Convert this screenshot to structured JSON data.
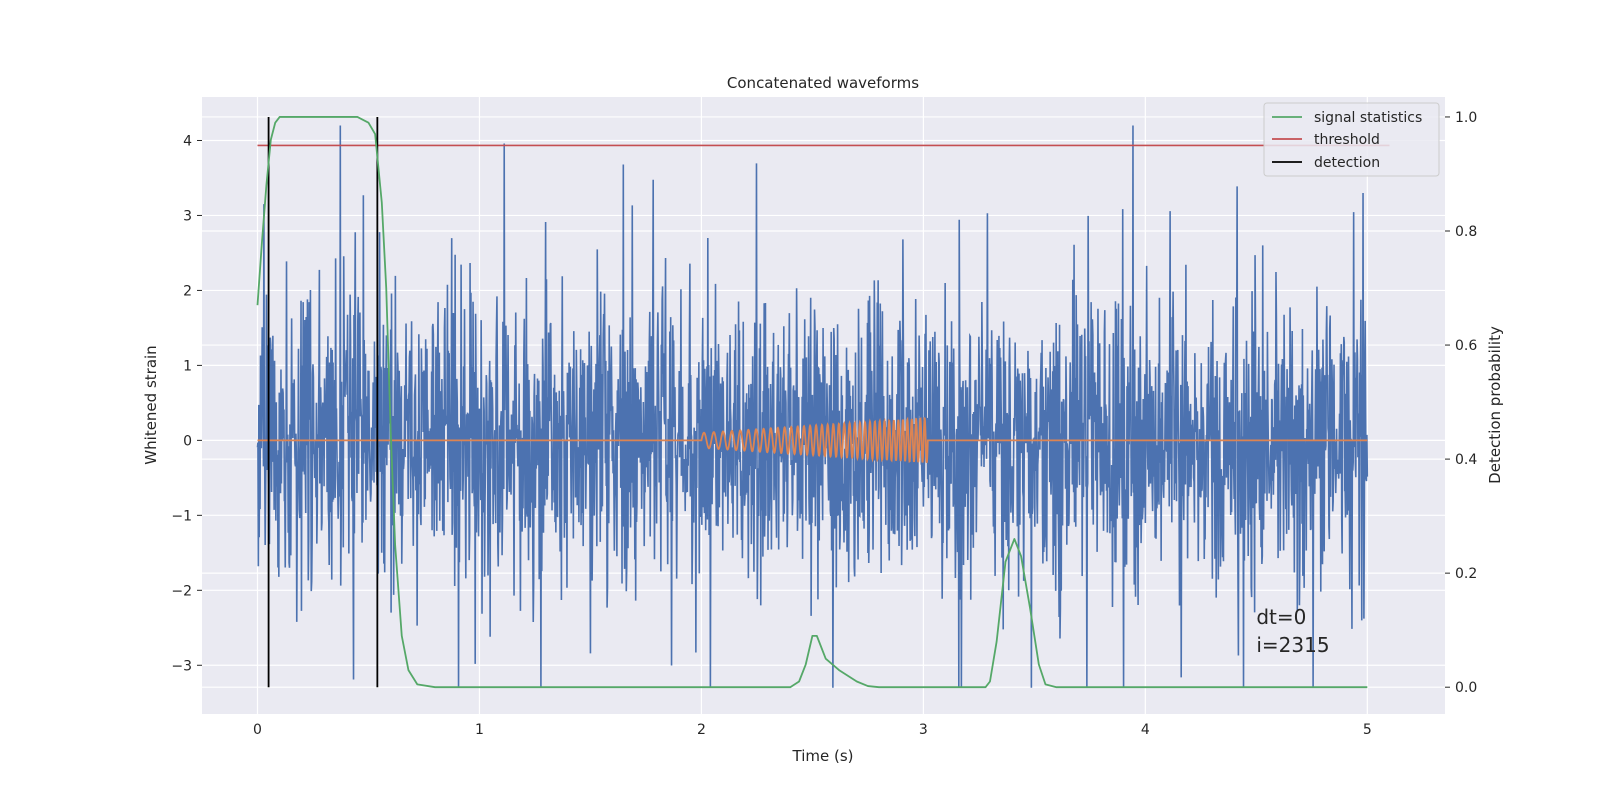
{
  "chart_data": {
    "type": "line",
    "title": "Concatenated waveforms",
    "xlabel": "Time (s)",
    "ylabel": "Whitened strain",
    "y2label": "Detection probability",
    "xlim": [
      -0.25,
      5.35
    ],
    "ylim": [
      -3.65,
      4.58
    ],
    "y2lim": [
      -0.047,
      1.035
    ],
    "xticks": [
      0,
      1,
      2,
      3,
      4,
      5
    ],
    "yticks": [
      -3,
      -2,
      -1,
      0,
      1,
      2,
      3,
      4
    ],
    "y2ticks": [
      0.0,
      0.2,
      0.4,
      0.6,
      0.8,
      1.0
    ],
    "grid": true,
    "legend_position": "top-right",
    "legend": [
      {
        "label": "signal statistics",
        "color": "#55a868"
      },
      {
        "label": "threshold",
        "color": "#c44e52"
      },
      {
        "label": "detection",
        "color": "#000000"
      }
    ],
    "series": [
      {
        "role": "whitened-strain",
        "color": "#4c72b0",
        "axis": "left",
        "x_range": [
          0,
          5
        ],
        "noise_sigma": 0.95,
        "peak_max": 4.2,
        "peak_min": -3.3
      },
      {
        "role": "injected-signal",
        "color": "#dd8452",
        "axis": "left",
        "x_range": [
          0,
          5
        ],
        "chirp_start": 2.0,
        "chirp_end": 3.02,
        "amp_start": 0.1,
        "amp_end": 0.3
      },
      {
        "name": "signal statistics",
        "color": "#55a868",
        "axis": "right",
        "x": [
          0.0,
          0.02,
          0.04,
          0.06,
          0.08,
          0.1,
          0.15,
          0.3,
          0.45,
          0.5,
          0.53,
          0.56,
          0.58,
          0.6,
          0.62,
          0.65,
          0.68,
          0.72,
          0.8,
          1.0,
          1.5,
          2.0,
          2.4,
          2.44,
          2.47,
          2.5,
          2.52,
          2.56,
          2.62,
          2.7,
          2.75,
          2.8,
          3.0,
          3.28,
          3.3,
          3.33,
          3.37,
          3.41,
          3.44,
          3.48,
          3.52,
          3.55,
          3.6,
          4.0,
          4.5,
          5.0
        ],
        "y": [
          0.67,
          0.78,
          0.88,
          0.96,
          0.99,
          1.0,
          1.0,
          1.0,
          1.0,
          0.99,
          0.97,
          0.85,
          0.7,
          0.45,
          0.25,
          0.09,
          0.03,
          0.005,
          0.0,
          0.0,
          0.0,
          0.0,
          0.0,
          0.01,
          0.04,
          0.09,
          0.09,
          0.05,
          0.03,
          0.01,
          0.002,
          0.0,
          0.0,
          0.0,
          0.01,
          0.08,
          0.22,
          0.26,
          0.23,
          0.14,
          0.04,
          0.005,
          0.0,
          0.0,
          0.0,
          0.0
        ]
      },
      {
        "name": "threshold",
        "color": "#c44e52",
        "axis": "right",
        "x": [
          0,
          5.1
        ],
        "y": [
          0.95,
          0.95
        ]
      },
      {
        "name": "detection",
        "color": "#000000",
        "axis": "right",
        "vlines": [
          0.05,
          0.54
        ],
        "y": [
          0,
          1
        ]
      }
    ],
    "annotations": [
      {
        "text": "dt=0",
        "x": 4.5,
        "y": -2.45
      },
      {
        "text": "i=2315",
        "x": 4.5,
        "y": -2.82
      }
    ]
  }
}
